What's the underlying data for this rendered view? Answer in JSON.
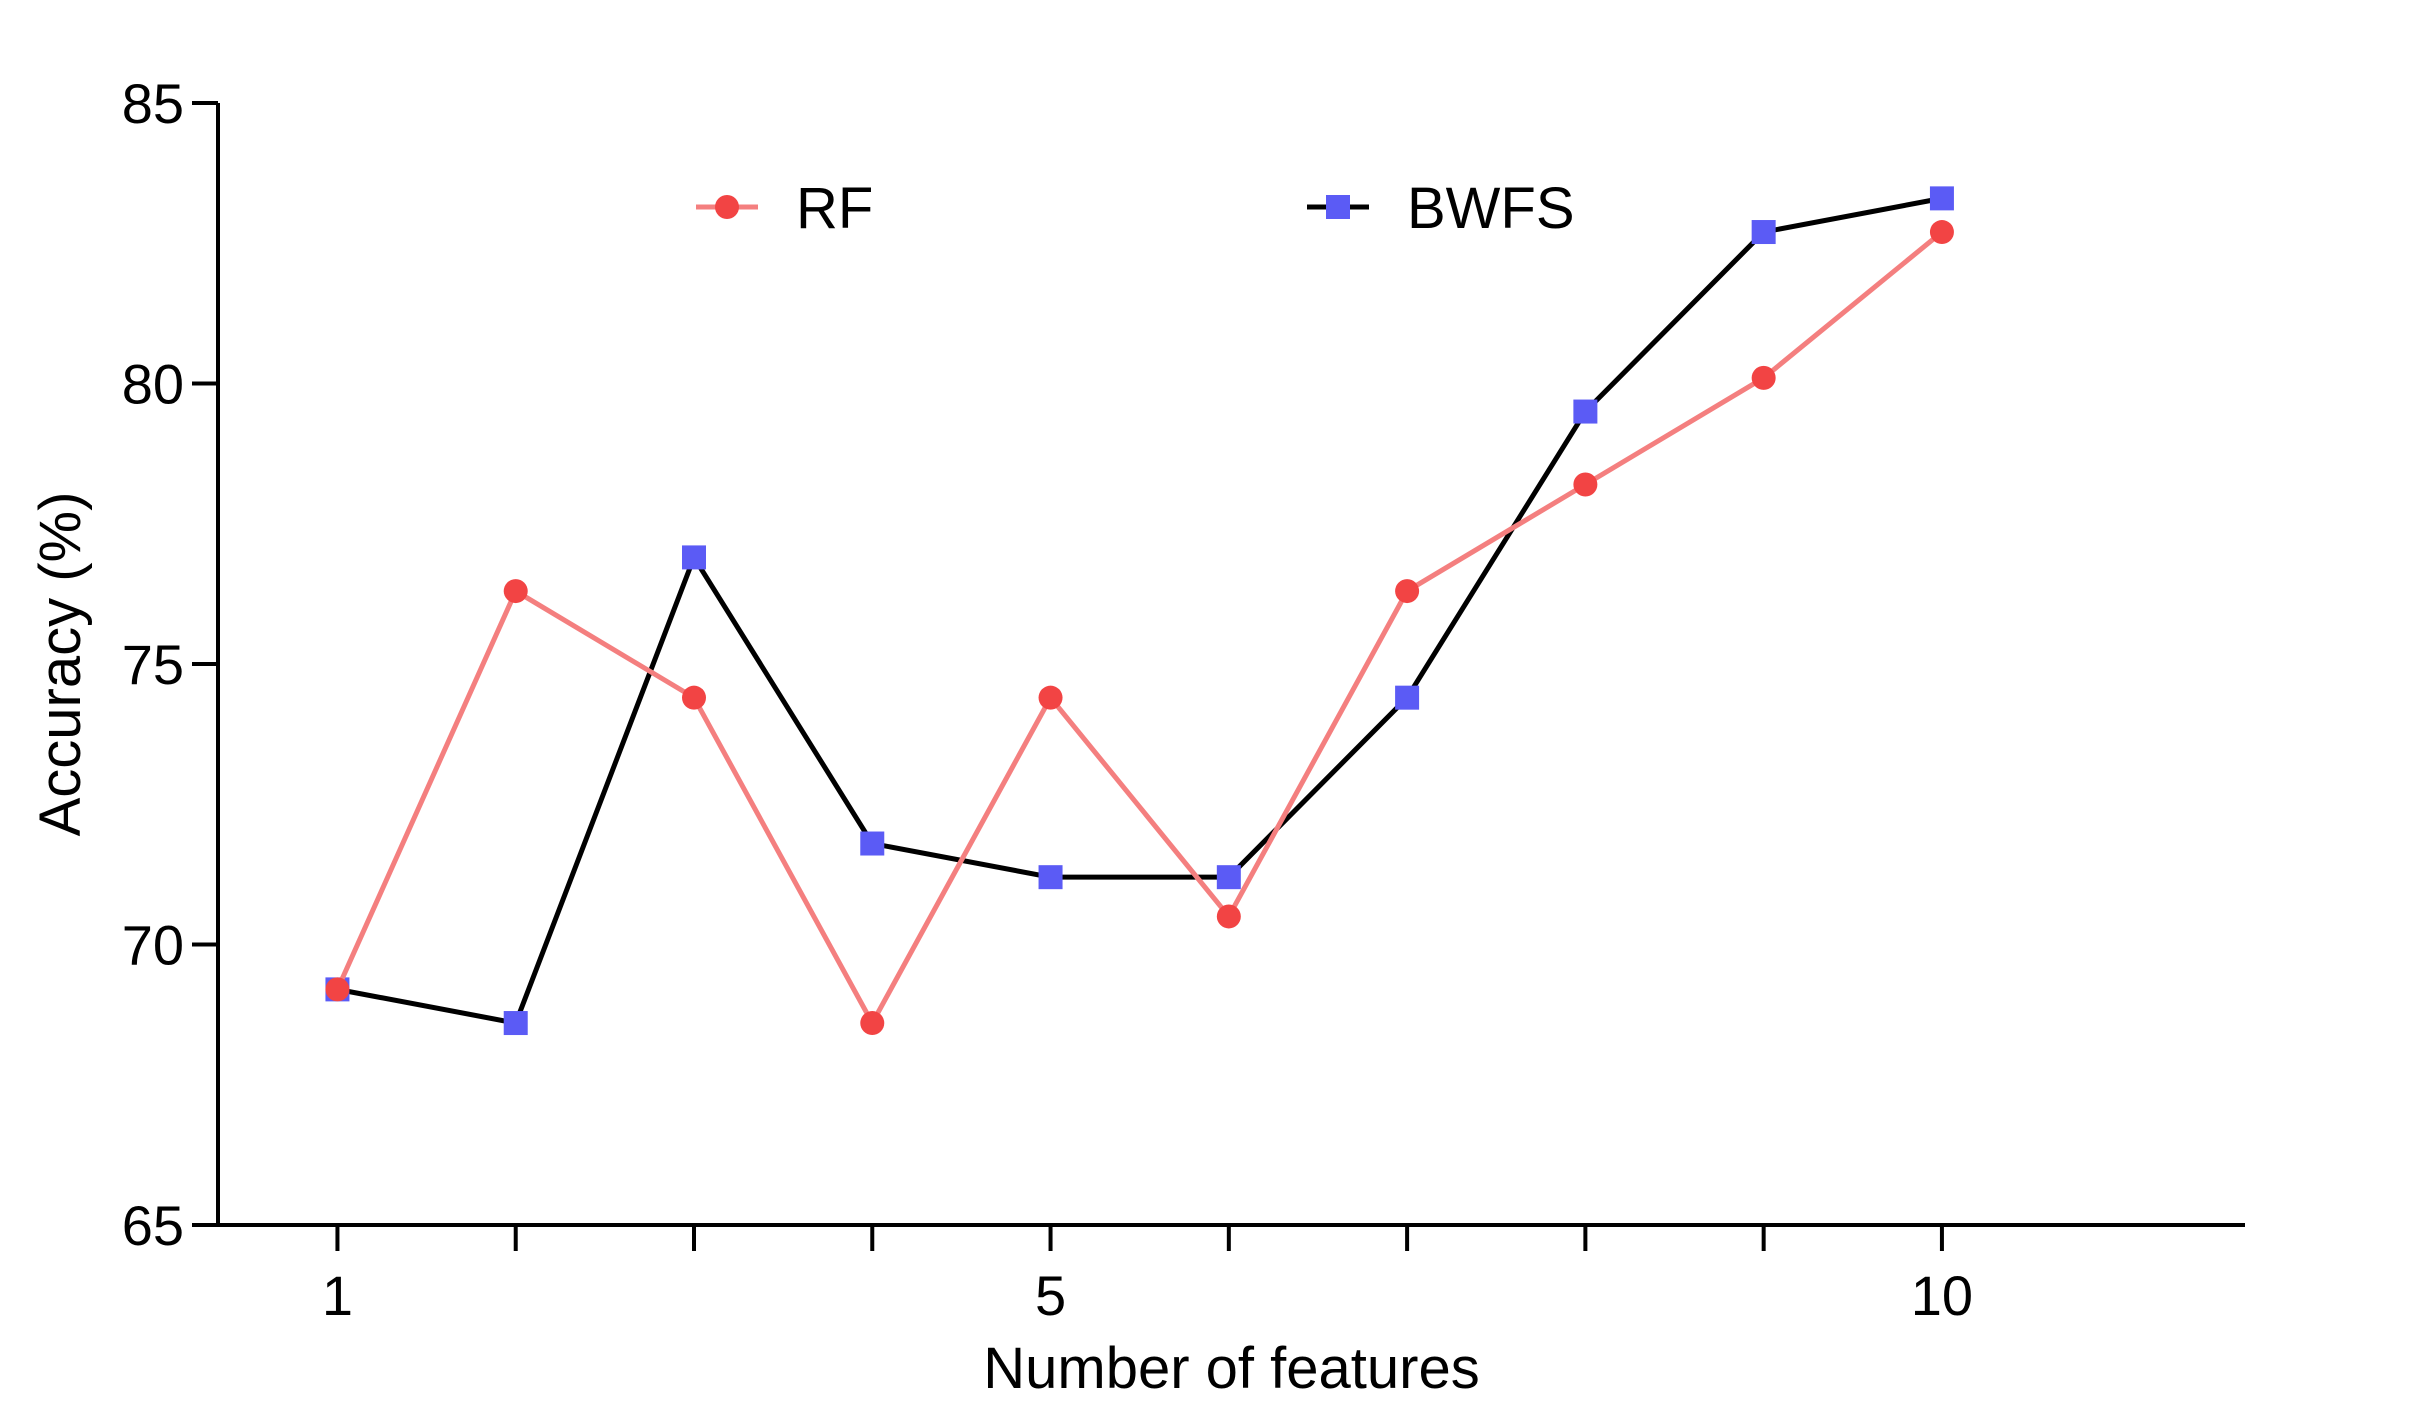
{
  "chart_data": {
    "type": "line",
    "xlabel": "Number of features",
    "ylabel": "Accuracy (%)",
    "xlim": [
      0.33,
      11.7
    ],
    "ylim": [
      65,
      85
    ],
    "x": [
      1,
      2,
      3,
      4,
      5,
      6,
      7,
      8,
      9,
      10
    ],
    "x_tick_values": [
      1,
      2,
      3,
      4,
      5,
      6,
      7,
      8,
      9,
      10
    ],
    "x_tick_labels": [
      "1",
      "",
      "",
      "",
      "5",
      "",
      "",
      "",
      "",
      "10"
    ],
    "y_ticks": [
      65,
      70,
      75,
      80,
      85
    ],
    "grid": false,
    "legend_position": "top",
    "series": [
      {
        "name": "RF",
        "legend_label": "RF",
        "color": "#f47f7f",
        "marker_color": "#f24444",
        "marker": "circle",
        "values": [
          69.2,
          76.3,
          74.4,
          68.6,
          74.4,
          70.5,
          76.3,
          78.2,
          80.1,
          82.7
        ]
      },
      {
        "name": "BWFS",
        "legend_label": "BWFS",
        "color": "#000000",
        "marker_color": "#5b5bf5",
        "marker": "square",
        "values": [
          69.2,
          68.6,
          76.9,
          71.8,
          71.2,
          71.2,
          74.4,
          79.5,
          82.7,
          83.3
        ]
      }
    ]
  }
}
